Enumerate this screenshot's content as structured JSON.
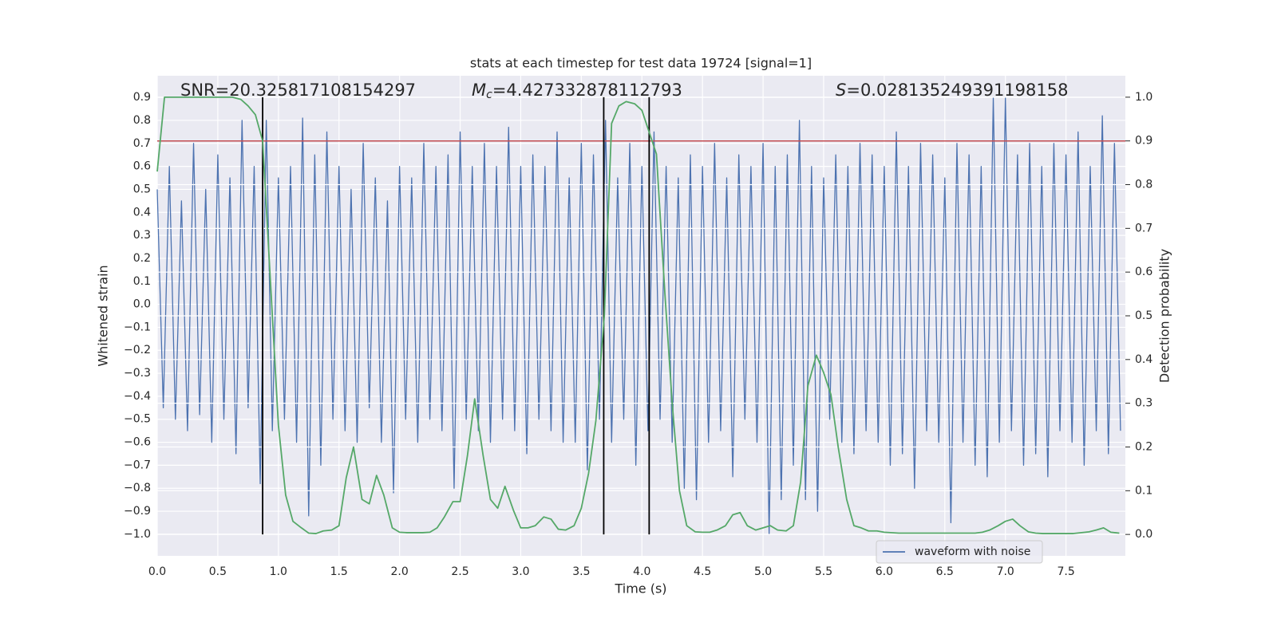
{
  "chart_data": {
    "type": "line",
    "title": "stats at each timestep for test data 19724 [signal=1]",
    "x_label": "Time (s)",
    "y_label": "Whitened strain",
    "y2_label": "Detection probability",
    "annotations": [
      {
        "text": "SNR=20.325817108154297"
      },
      {
        "symbol": "M",
        "subscript": "c",
        "text": "=4.427332878112793"
      },
      {
        "symbol": "S",
        "text": "=0.028135249391198158"
      }
    ],
    "xlim": [
      0,
      7.99
    ],
    "xticks": [
      {
        "value": 0,
        "label": "0.0"
      },
      0.5,
      {
        "value": 1,
        "label": "1.0"
      },
      1.5,
      {
        "value": 2,
        "label": "2.0"
      },
      2.5,
      {
        "value": 3,
        "label": "3.0"
      },
      3.5,
      {
        "value": 4,
        "label": "4.0"
      },
      4.5,
      {
        "value": 5,
        "label": "5.0"
      },
      5.5,
      {
        "value": 6,
        "label": "6.0"
      },
      6.5,
      {
        "value": 7,
        "label": "7.0"
      },
      7.5
    ],
    "ylim": [
      -1.094,
      0.994
    ],
    "yticks": [
      {
        "value": -1,
        "label": "−1.0"
      },
      {
        "value": -0.9,
        "label": "−0.9"
      },
      {
        "value": -0.8,
        "label": "−0.8"
      },
      {
        "value": -0.7,
        "label": "−0.7"
      },
      {
        "value": -0.6,
        "label": "−0.6"
      },
      {
        "value": -0.5,
        "label": "−0.5"
      },
      {
        "value": -0.4,
        "label": "−0.4"
      },
      {
        "value": -0.3,
        "label": "−0.3"
      },
      {
        "value": -0.2,
        "label": "−0.2"
      },
      {
        "value": -0.1,
        "label": "−0.1"
      },
      {
        "value": 0,
        "label": "0.0"
      },
      0.1,
      0.2,
      0.3,
      0.4,
      0.5,
      0.6,
      0.7,
      0.8,
      0.9
    ],
    "y2lim": [
      -0.049,
      1.049
    ],
    "y2ticks": [
      {
        "value": 0,
        "label": "0.0"
      },
      0.1,
      0.2,
      0.3,
      0.4,
      0.5,
      0.6,
      0.7,
      0.8,
      0.9,
      {
        "value": 1,
        "label": "1.0"
      }
    ],
    "grid": true,
    "series": [
      {
        "name": "waveform with noise",
        "color": "#4c72b0",
        "x": [
          0,
          0.05,
          0.1,
          0.15,
          0.2,
          0.25,
          0.3,
          0.35,
          0.4,
          0.45,
          0.5,
          0.55,
          0.6,
          0.65,
          0.7,
          0.75,
          0.8,
          0.85,
          0.9,
          0.95,
          1,
          1.05,
          1.1,
          1.15,
          1.2,
          1.25,
          1.3,
          1.35,
          1.4,
          1.45,
          1.5,
          1.55,
          1.6,
          1.65,
          1.7,
          1.75,
          1.8,
          1.85,
          1.9,
          1.95,
          2,
          2.05,
          2.1,
          2.15,
          2.2,
          2.25,
          2.3,
          2.35,
          2.4,
          2.45,
          2.5,
          2.55,
          2.6,
          2.65,
          2.7,
          2.75,
          2.8,
          2.85,
          2.9,
          2.95,
          3,
          3.05,
          3.1,
          3.15,
          3.2,
          3.25,
          3.3,
          3.35,
          3.4,
          3.45,
          3.5,
          3.55,
          3.6,
          3.65,
          3.7,
          3.75,
          3.8,
          3.85,
          3.9,
          3.95,
          4,
          4.05,
          4.1,
          4.15,
          4.2,
          4.25,
          4.3,
          4.35,
          4.4,
          4.45,
          4.5,
          4.55,
          4.6,
          4.65,
          4.7,
          4.75,
          4.8,
          4.85,
          4.9,
          4.95,
          5,
          5.05,
          5.1,
          5.15,
          5.2,
          5.25,
          5.3,
          5.35,
          5.4,
          5.45,
          5.5,
          5.55,
          5.6,
          5.65,
          5.7,
          5.75,
          5.8,
          5.85,
          5.9,
          5.95,
          6,
          6.05,
          6.1,
          6.15,
          6.2,
          6.25,
          6.3,
          6.35,
          6.4,
          6.45,
          6.5,
          6.55,
          6.6,
          6.65,
          6.7,
          6.75,
          6.8,
          6.85,
          6.9,
          6.95,
          7,
          7.05,
          7.1,
          7.15,
          7.2,
          7.25,
          7.3,
          7.35,
          7.4,
          7.45,
          7.5,
          7.55,
          7.6,
          7.65,
          7.7,
          7.75,
          7.8,
          7.85,
          7.9,
          7.95
        ],
        "values": [
          0.5,
          -0.45,
          0.6,
          -0.5,
          0.45,
          -0.55,
          0.7,
          -0.48,
          0.5,
          -0.6,
          0.65,
          -0.5,
          0.55,
          -0.65,
          0.8,
          -0.45,
          0.6,
          -0.78,
          0.8,
          -0.55,
          0.55,
          -0.5,
          0.6,
          -0.6,
          0.81,
          -0.92,
          0.65,
          -0.7,
          0.75,
          -0.5,
          0.6,
          -0.55,
          0.5,
          -0.6,
          0.7,
          -0.45,
          0.55,
          -0.6,
          0.45,
          -0.82,
          0.6,
          -0.5,
          0.55,
          -0.6,
          0.7,
          -0.5,
          0.6,
          -0.55,
          0.65,
          -0.8,
          0.75,
          -0.5,
          0.6,
          -0.55,
          0.7,
          -0.6,
          0.6,
          -0.5,
          0.77,
          -0.55,
          0.6,
          -0.65,
          0.65,
          -0.5,
          0.6,
          -0.55,
          0.75,
          -0.6,
          0.55,
          -0.6,
          0.7,
          -0.72,
          0.65,
          -0.5,
          0.8,
          -0.6,
          0.55,
          -0.5,
          0.7,
          -0.7,
          0.6,
          -0.55,
          0.75,
          -0.5,
          0.6,
          -0.6,
          0.55,
          -0.8,
          0.65,
          -0.85,
          0.6,
          -0.6,
          0.7,
          -0.55,
          0.55,
          -0.75,
          0.65,
          -0.5,
          0.6,
          -0.6,
          0.7,
          -1.0,
          0.6,
          -0.85,
          0.65,
          -0.7,
          0.8,
          -0.85,
          0.6,
          -0.9,
          0.55,
          -0.5,
          0.65,
          -0.6,
          0.6,
          -0.65,
          0.7,
          -0.55,
          0.65,
          -0.6,
          0.6,
          -0.7,
          0.75,
          -0.65,
          0.6,
          -0.8,
          0.7,
          -0.55,
          0.65,
          -0.6,
          0.55,
          -0.95,
          0.7,
          -0.6,
          0.65,
          -0.7,
          0.6,
          -0.75,
          0.9,
          -0.6,
          0.9,
          -0.55,
          0.65,
          -0.7,
          0.7,
          -0.65,
          0.6,
          -0.75,
          0.7,
          -0.55,
          0.65,
          -0.6,
          0.75,
          -0.7,
          0.6,
          -0.55,
          0.82,
          -0.65,
          0.7,
          -0.55
        ]
      },
      {
        "color": "#55a868",
        "axis": "y2",
        "x": [
          0,
          0.06,
          0.12,
          0.25,
          0.4,
          0.55,
          0.62,
          0.69,
          0.75,
          0.81,
          0.87,
          0.94,
          1,
          1.06,
          1.12,
          1.19,
          1.25,
          1.31,
          1.37,
          1.44,
          1.5,
          1.56,
          1.62,
          1.69,
          1.75,
          1.81,
          1.87,
          1.94,
          2,
          2.06,
          2.12,
          2.19,
          2.25,
          2.31,
          2.37,
          2.44,
          2.5,
          2.56,
          2.62,
          2.69,
          2.75,
          2.81,
          2.87,
          2.94,
          3,
          3.06,
          3.12,
          3.19,
          3.25,
          3.31,
          3.37,
          3.44,
          3.5,
          3.56,
          3.62,
          3.69,
          3.75,
          3.81,
          3.87,
          3.94,
          4,
          4.06,
          4.12,
          4.19,
          4.25,
          4.31,
          4.37,
          4.44,
          4.5,
          4.56,
          4.62,
          4.69,
          4.75,
          4.81,
          4.87,
          4.94,
          5,
          5.06,
          5.12,
          5.19,
          5.25,
          5.31,
          5.37,
          5.44,
          5.5,
          5.56,
          5.62,
          5.69,
          5.75,
          5.81,
          5.87,
          5.94,
          6,
          6.12,
          6.31,
          6.5,
          6.75,
          6.81,
          6.87,
          6.94,
          7,
          7.06,
          7.12,
          7.19,
          7.25,
          7.31,
          7.44,
          7.56,
          7.69,
          7.75,
          7.81,
          7.87,
          7.94
        ],
        "values": [
          0.83,
          1.0,
          1.0,
          1.0,
          1.0,
          1.0,
          1.0,
          0.995,
          0.98,
          0.96,
          0.9,
          0.55,
          0.25,
          0.09,
          0.03,
          0.015,
          0.003,
          0.002,
          0.008,
          0.01,
          0.02,
          0.13,
          0.2,
          0.08,
          0.07,
          0.135,
          0.09,
          0.015,
          0.005,
          0.004,
          0.004,
          0.004,
          0.005,
          0.015,
          0.04,
          0.075,
          0.075,
          0.18,
          0.31,
          0.18,
          0.08,
          0.06,
          0.11,
          0.055,
          0.015,
          0.015,
          0.02,
          0.04,
          0.035,
          0.012,
          0.01,
          0.02,
          0.06,
          0.14,
          0.26,
          0.5,
          0.94,
          0.98,
          0.99,
          0.985,
          0.97,
          0.92,
          0.87,
          0.55,
          0.3,
          0.1,
          0.02,
          0.006,
          0.005,
          0.005,
          0.01,
          0.02,
          0.045,
          0.05,
          0.02,
          0.01,
          0.015,
          0.02,
          0.01,
          0.008,
          0.02,
          0.12,
          0.34,
          0.41,
          0.37,
          0.32,
          0.2,
          0.08,
          0.02,
          0.015,
          0.008,
          0.008,
          0.005,
          0.003,
          0.003,
          0.003,
          0.003,
          0.005,
          0.01,
          0.02,
          0.03,
          0.035,
          0.02,
          0.006,
          0.003,
          0.002,
          0.002,
          0.002,
          0.006,
          0.01,
          0.015,
          0.005,
          0.003
        ]
      }
    ],
    "threshold": {
      "y2": 0.9,
      "color": "#c44e52"
    },
    "vlines": {
      "x": [
        0.87,
        3.685,
        4.06
      ],
      "y2min": 0,
      "y2max": 1,
      "color": "#000000"
    }
  }
}
